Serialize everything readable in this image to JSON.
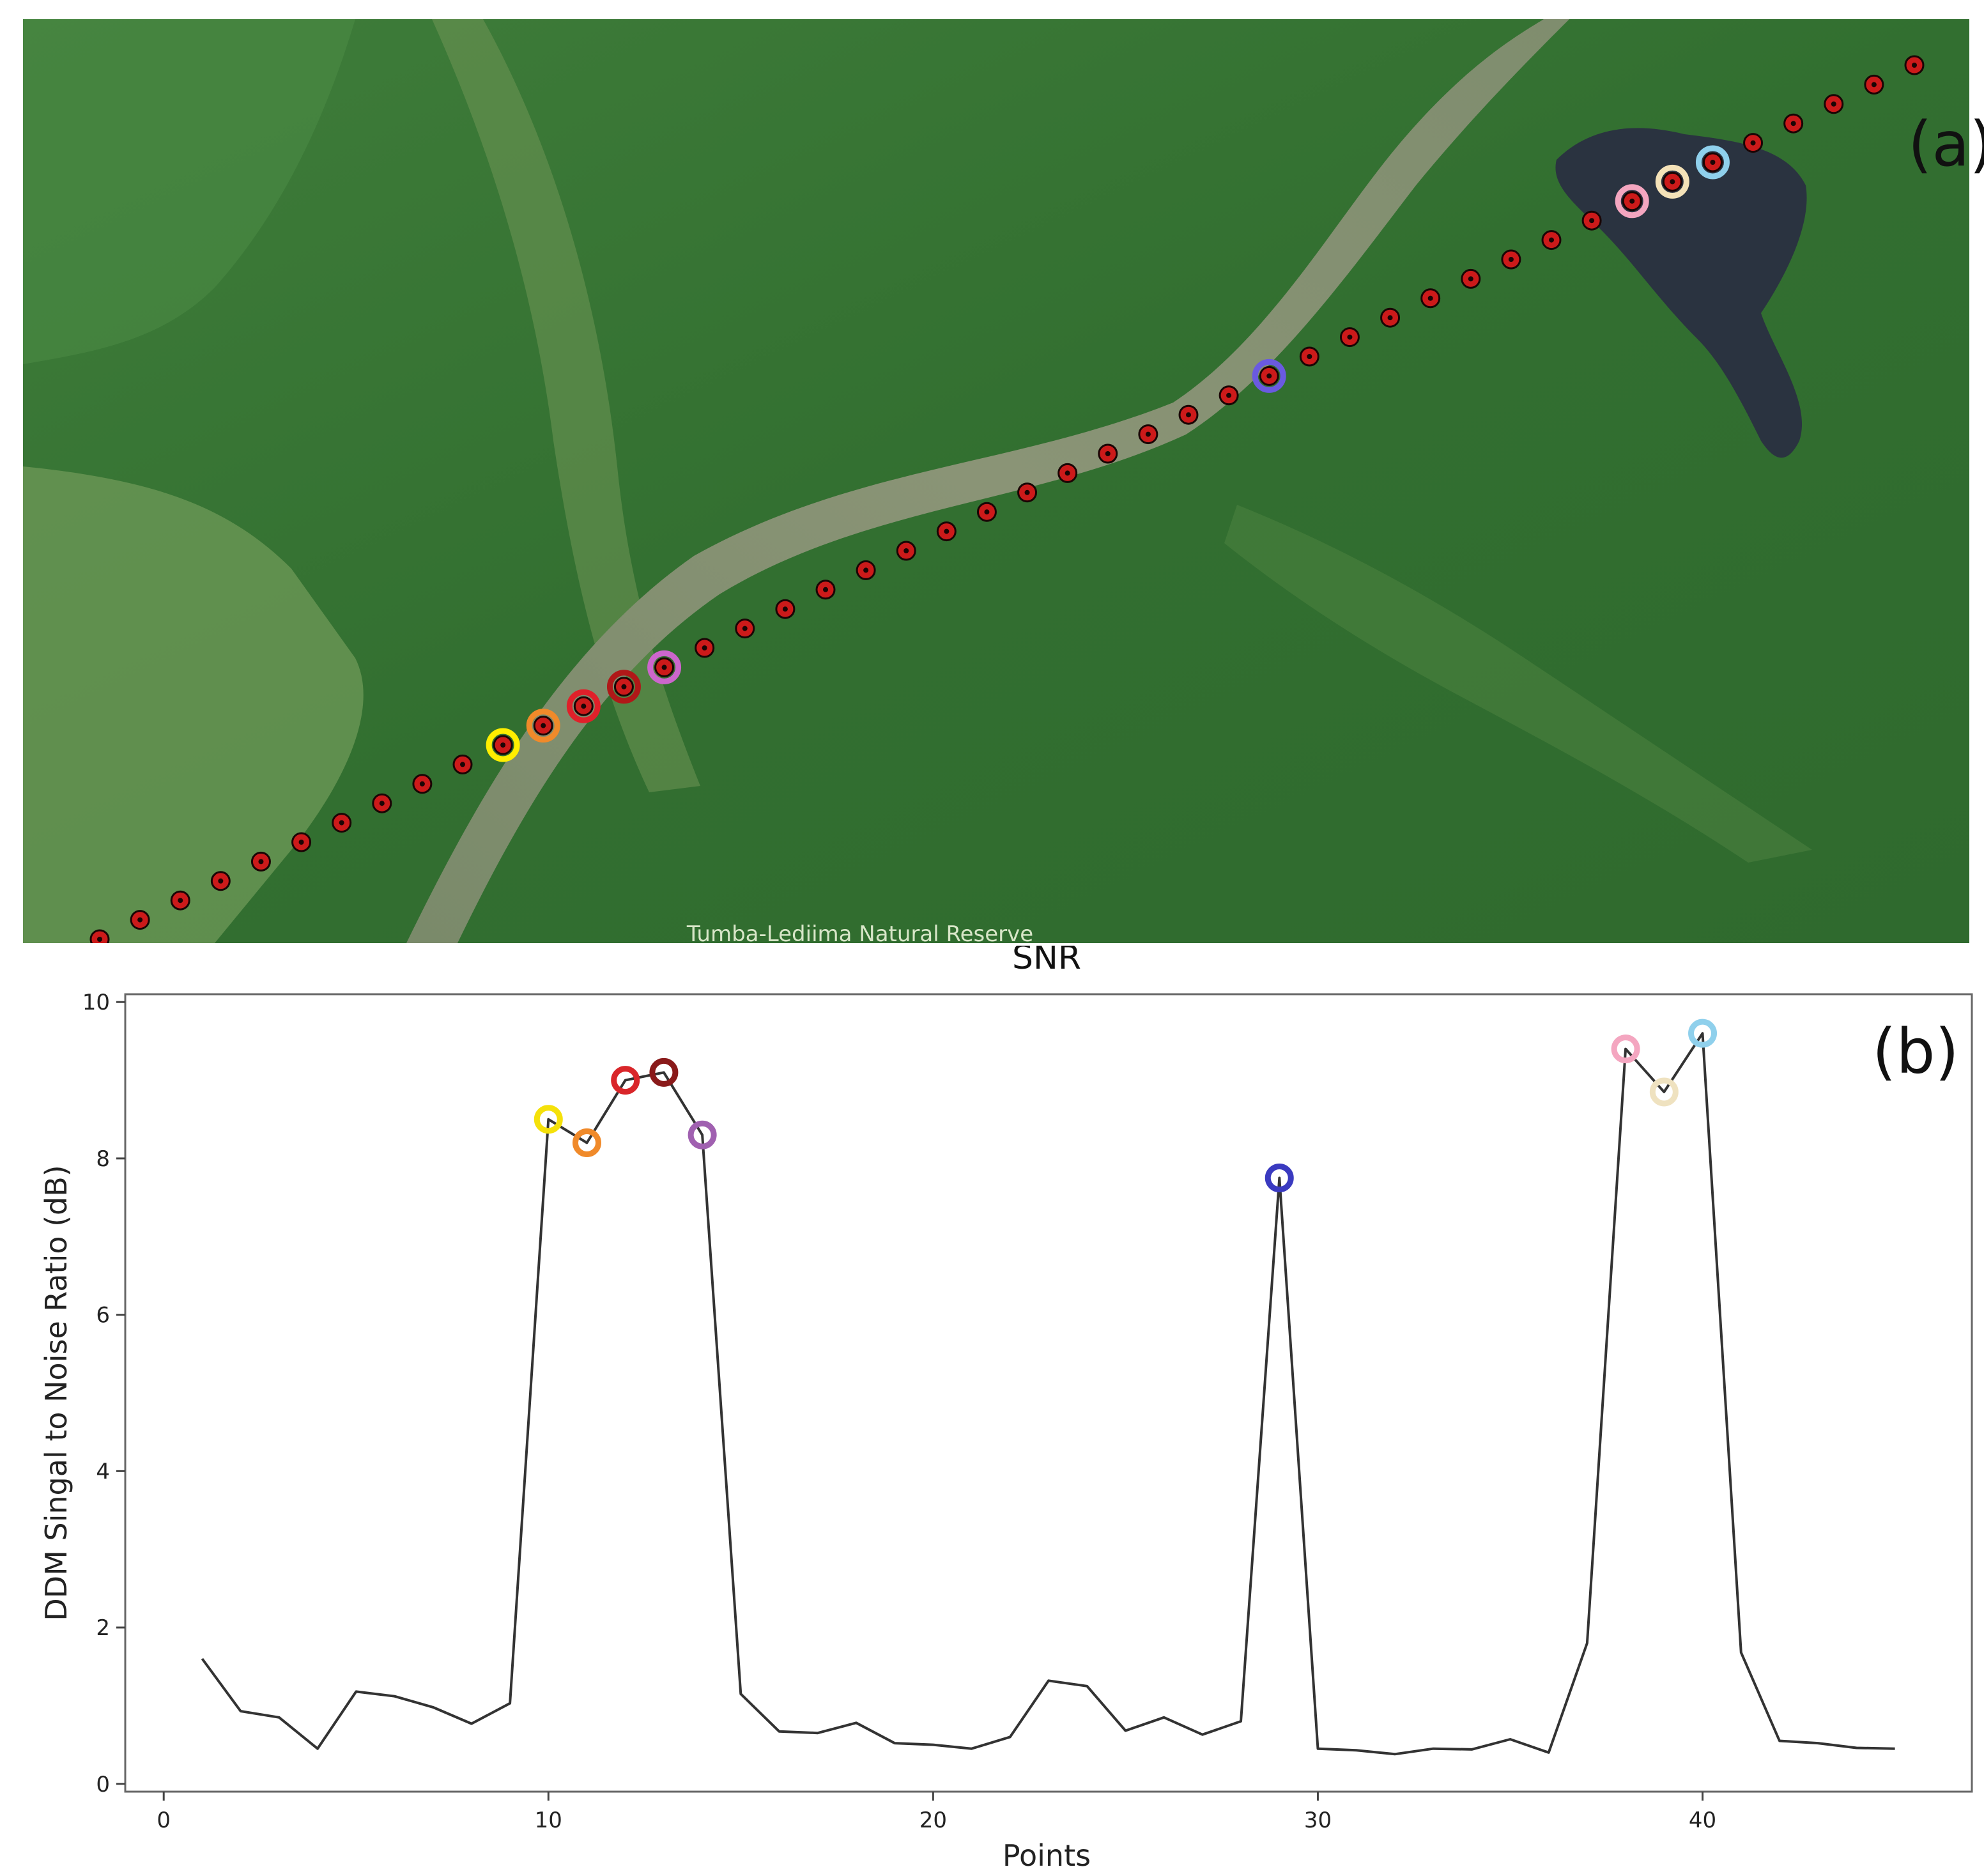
{
  "map": {
    "caption": "Tumba-Lediima Natural Reserve",
    "panel_label": "(a)",
    "track_marker_color": "#cc1a1a",
    "track_point_count": 46,
    "highlighted_points": [
      {
        "point": 10,
        "color": "#ffee00"
      },
      {
        "point": 11,
        "color": "#f08a2a"
      },
      {
        "point": 12,
        "color": "#e0202a"
      },
      {
        "point": 13,
        "color": "#b01818"
      },
      {
        "point": 14,
        "color": "#cc66cc"
      },
      {
        "point": 29,
        "color": "#6a5ae0"
      },
      {
        "point": 38,
        "color": "#f4a6c0"
      },
      {
        "point": 39,
        "color": "#f4e2b8"
      },
      {
        "point": 40,
        "color": "#8fd0ec"
      }
    ]
  },
  "chart": {
    "panel_label": "(b)"
  },
  "chart_data": {
    "type": "line",
    "title": "SNR",
    "xlabel": "Points",
    "ylabel": "DDM Singal to Noise Ratio (dB)",
    "xlim": [
      -1,
      47
    ],
    "ylim": [
      -0.1,
      10.1
    ],
    "xticks": [
      "0",
      "10",
      "20",
      "30",
      "40"
    ],
    "yticks": [
      "0",
      "2",
      "4",
      "6",
      "8",
      "10"
    ],
    "grid": false,
    "line_color": "#333333",
    "series": [
      {
        "x": [
          1,
          2,
          3,
          4,
          5,
          6,
          7,
          8,
          9,
          10,
          11,
          12,
          13,
          14,
          15,
          16,
          17,
          18,
          19,
          20,
          21,
          22,
          23,
          24,
          25,
          26,
          27,
          28,
          29,
          30,
          31,
          32,
          33,
          34,
          35,
          36,
          37,
          38,
          39,
          40,
          41,
          42,
          43,
          44,
          45
        ],
        "values": [
          1.6,
          0.93,
          0.85,
          0.45,
          1.18,
          1.12,
          0.98,
          0.77,
          1.03,
          8.5,
          8.2,
          9.0,
          9.1,
          8.3,
          1.15,
          0.67,
          0.65,
          0.78,
          0.52,
          0.5,
          0.45,
          0.6,
          1.32,
          1.25,
          0.68,
          0.85,
          0.63,
          0.8,
          7.75,
          0.45,
          0.43,
          0.38,
          0.45,
          0.44,
          0.57,
          0.4,
          1.8,
          9.4,
          8.85,
          9.6,
          1.68,
          0.55,
          0.52,
          0.46,
          0.45
        ]
      }
    ],
    "highlighted": [
      {
        "x": 10,
        "y": 8.5,
        "color": "#f5e10a"
      },
      {
        "x": 11,
        "y": 8.2,
        "color": "#f08a2a"
      },
      {
        "x": 12,
        "y": 9.0,
        "color": "#d9262a"
      },
      {
        "x": 13,
        "y": 9.1,
        "color": "#8a1a1a"
      },
      {
        "x": 14,
        "y": 8.3,
        "color": "#a060b0"
      },
      {
        "x": 29,
        "y": 7.75,
        "color": "#3a3ac0"
      },
      {
        "x": 38,
        "y": 9.4,
        "color": "#f4a6c0"
      },
      {
        "x": 39,
        "y": 8.85,
        "color": "#efe2c0"
      },
      {
        "x": 40,
        "y": 9.6,
        "color": "#8fd0ec"
      }
    ]
  }
}
